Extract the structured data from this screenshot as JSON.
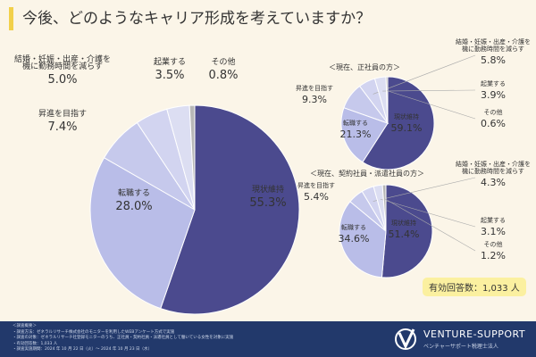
{
  "title": "今後、どのようなキャリア形成を考えていますか？",
  "chart_data": [
    {
      "type": "pie",
      "title": "",
      "categories": [
        "現状維持",
        "転職する",
        "昇進を目指す",
        "結婚・妊娠・出産・介護を機に勤務時間を減らす",
        "起業する",
        "その他"
      ],
      "values": [
        55.3,
        28.0,
        7.4,
        5.0,
        3.5,
        0.8
      ],
      "unit": "%"
    },
    {
      "type": "pie",
      "title": "＜現在、正社員の方＞",
      "categories": [
        "現状維持",
        "転職する",
        "昇進を目指す",
        "結婚・妊娠・出産・介護を機に勤務時間を減らす",
        "起業する",
        "その他"
      ],
      "values": [
        59.1,
        21.3,
        9.3,
        5.8,
        3.9,
        0.6
      ],
      "unit": "%"
    },
    {
      "type": "pie",
      "title": "＜現在、契約社員・派遣社員の方＞",
      "categories": [
        "現状維持",
        "転職する",
        "昇進を目指す",
        "結婚・妊娠・出産・介護を機に勤務時間を減らす",
        "起業する",
        "その他"
      ],
      "values": [
        51.4,
        34.6,
        5.4,
        4.3,
        3.1,
        1.2
      ],
      "unit": "%"
    }
  ],
  "colors": [
    "#4b4a8e",
    "#b9bde8",
    "#c6c9ec",
    "#d2d4f0",
    "#dcdef2",
    "#b7b7b7"
  ],
  "total": "有効回答数：1,033 人",
  "footer": {
    "notes": [
      "＜調査概要＞",
      "・調査方法：ゼネラルリサーチ株式会社のモニターを利用したWEBアンケート方式で実施",
      "・調査の対象：ゼネラルリサーチ社登録モニターのうち、正社員・契約社員・派遣社員として働いている女性を対象に実施",
      "・有効回答数：1,033 人",
      "・調査実施期間：2024 年 10 月 22 日（火）～ 2024 年 10 月 23 日（水）"
    ],
    "brand": "VENTURE-SUPPORT",
    "brand_sub": "ベンチャーサポート税理士法人"
  }
}
